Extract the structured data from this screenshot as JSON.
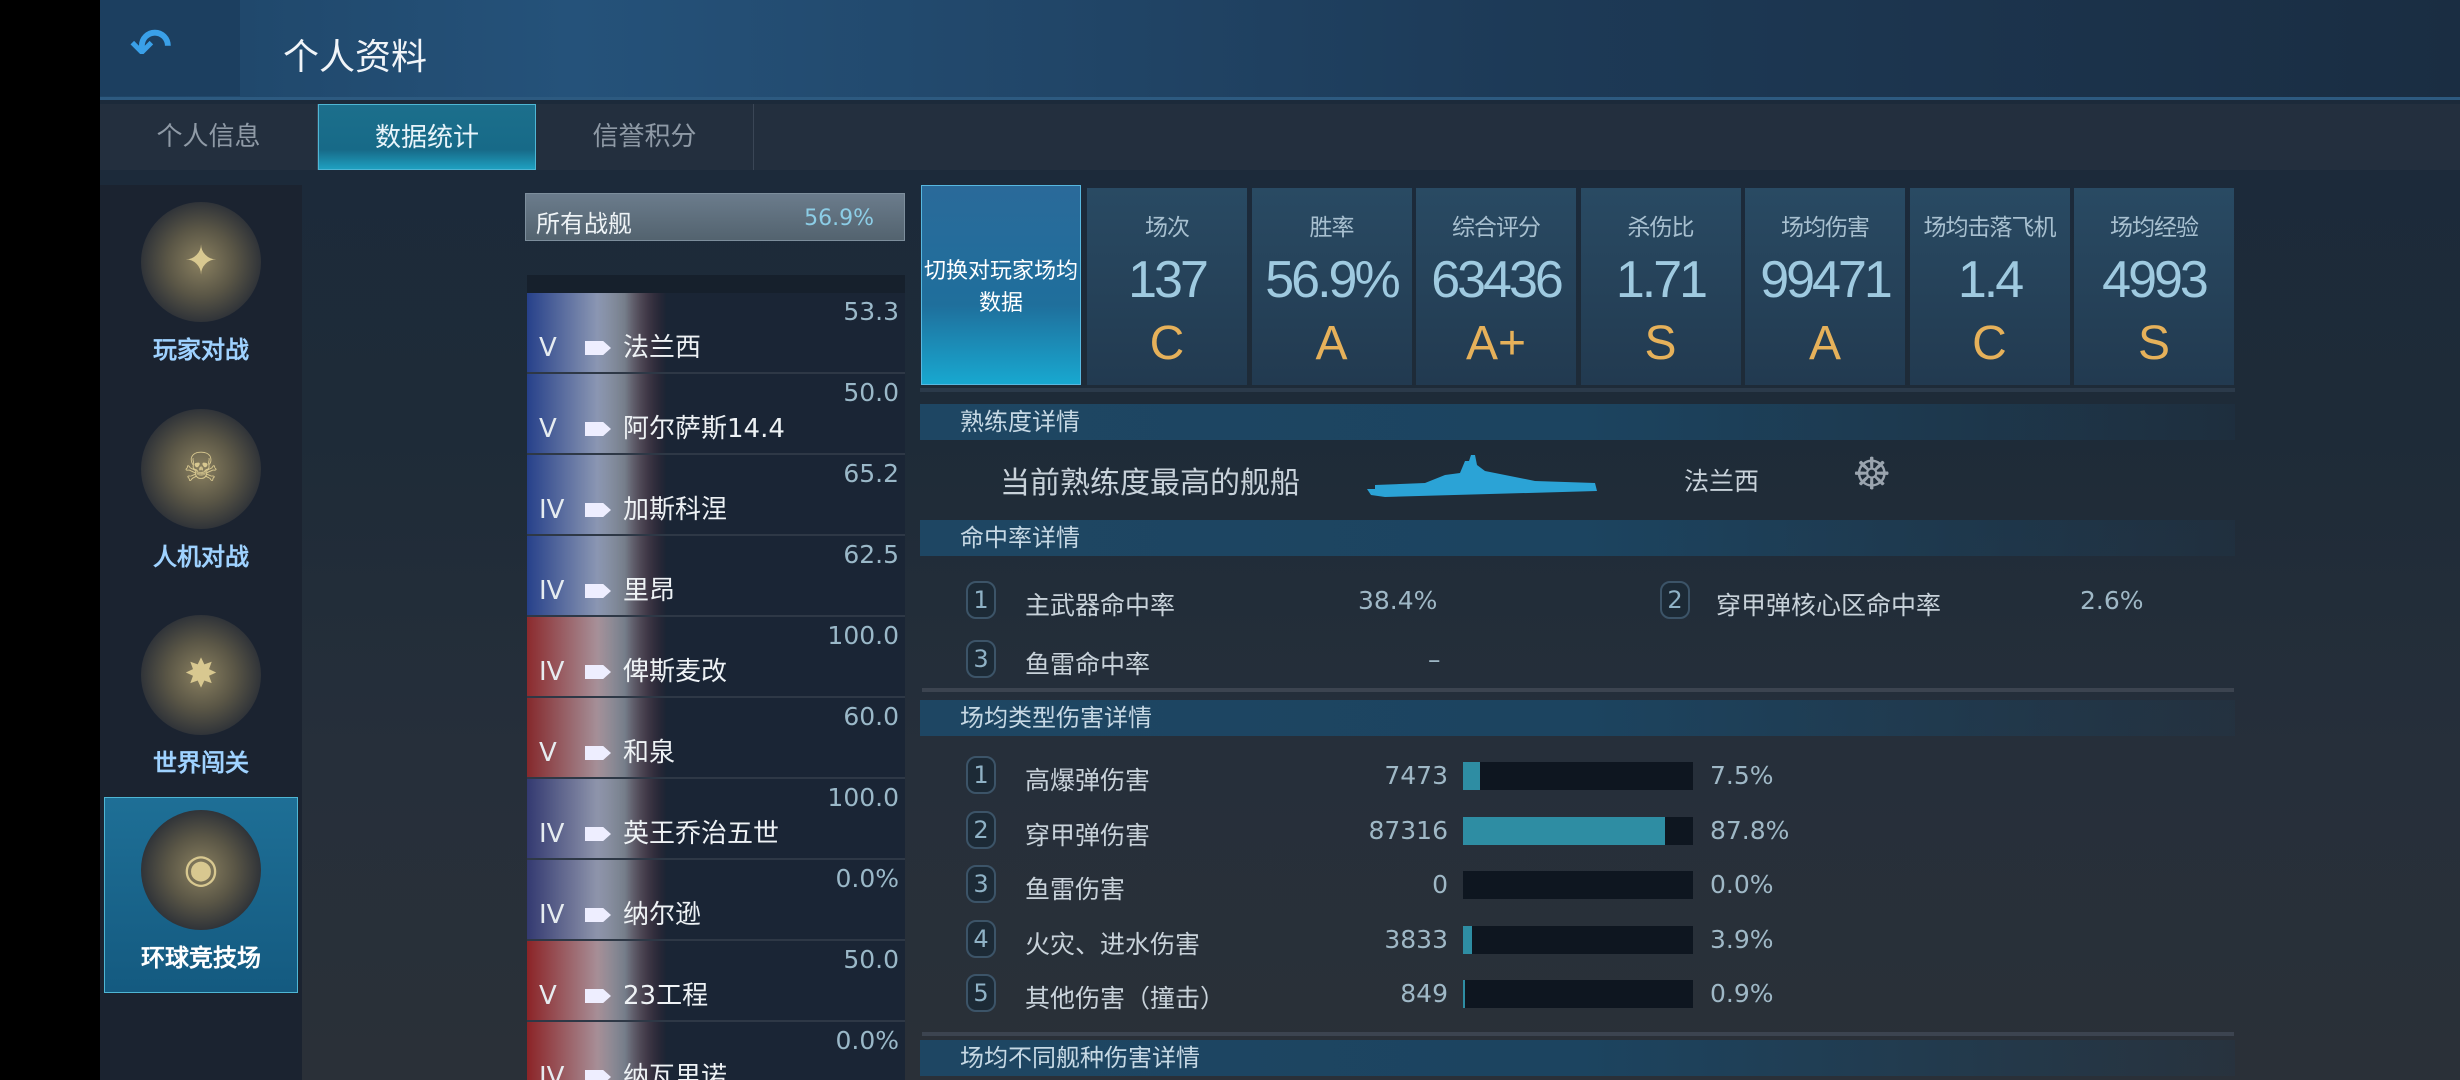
{
  "header": {
    "title": "个人资料",
    "back_icon": "back-arrow-icon"
  },
  "tabs": [
    {
      "label": "个人信息"
    },
    {
      "label": "数据统计",
      "active": true
    },
    {
      "label": "信誉积分"
    }
  ],
  "modes": [
    {
      "label": "玩家对战"
    },
    {
      "label": "人机对战"
    },
    {
      "label": "世界闯关"
    },
    {
      "label": "环球竞技场",
      "active": true
    }
  ],
  "ship_list": {
    "all": {
      "name": "所有战舰",
      "win_rate": "56.9%"
    },
    "rows": [
      {
        "tier": "V",
        "name": "法兰西",
        "win_rate": "53.3",
        "flag": "#2a48a0"
      },
      {
        "tier": "V",
        "name": "阿尔萨斯14.4",
        "win_rate": "50.0",
        "flag": "#2a48a0"
      },
      {
        "tier": "IV",
        "name": "加斯科涅",
        "win_rate": "65.2",
        "flag": "#2a48a0"
      },
      {
        "tier": "IV",
        "name": "里昂",
        "win_rate": "62.5",
        "flag": "#2a48a0"
      },
      {
        "tier": "IV",
        "name": "俾斯麦改",
        "win_rate": "100.0",
        "flag": "#a82c2c"
      },
      {
        "tier": "V",
        "name": "和泉",
        "win_rate": "60.0",
        "flag": "#a02a2a"
      },
      {
        "tier": "IV",
        "name": "英王乔治五世",
        "win_rate": "100.0",
        "flag": "#3a3f80"
      },
      {
        "tier": "IV",
        "name": "纳尔逊",
        "win_rate": "0.0%",
        "flag": "#3a3f80"
      },
      {
        "tier": "V",
        "name": "23工程",
        "win_rate": "50.0",
        "flag": "#a82424"
      },
      {
        "tier": "IV",
        "name": "纳瓦里诺",
        "win_rate": "0.0%",
        "flag": "#a82424"
      }
    ]
  },
  "stats": {
    "switch_label": "切换对玩家场均数据",
    "cards": [
      {
        "label": "场次",
        "value": "137",
        "grade": "C"
      },
      {
        "label": "胜率",
        "value": "56.9%",
        "grade": "A"
      },
      {
        "label": "综合评分",
        "value": "63436",
        "grade": "A+"
      },
      {
        "label": "杀伤比",
        "value": "1.71",
        "grade": "S"
      },
      {
        "label": "场均伤害",
        "value": "99471",
        "grade": "A"
      },
      {
        "label": "场均击落飞机",
        "value": "1.4",
        "grade": "C"
      },
      {
        "label": "场均经验",
        "value": "4993",
        "grade": "S"
      }
    ]
  },
  "proficiency": {
    "title": "熟练度详情",
    "label": "当前熟练度最高的舰船",
    "ship": "法兰西"
  },
  "hit_rate": {
    "title": "命中率详情",
    "items": [
      {
        "n": "1",
        "label": "主武器命中率",
        "value": "38.4%"
      },
      {
        "n": "2",
        "label": "穿甲弹核心区命中率",
        "value": "2.6%"
      },
      {
        "n": "3",
        "label": "鱼雷命中率",
        "value": "–"
      }
    ]
  },
  "damage_types": {
    "title": "场均类型伤害详情",
    "items": [
      {
        "n": "1",
        "label": "高爆弹伤害",
        "value": "7473",
        "pct": "7.5%",
        "fraction": 0.075
      },
      {
        "n": "2",
        "label": "穿甲弹伤害",
        "value": "87316",
        "pct": "87.8%",
        "fraction": 0.878
      },
      {
        "n": "3",
        "label": "鱼雷伤害",
        "value": "0",
        "pct": "0.0%",
        "fraction": 0.0
      },
      {
        "n": "4",
        "label": "火灾、进水伤害",
        "value": "3833",
        "pct": "3.9%",
        "fraction": 0.039
      },
      {
        "n": "5",
        "label": "其他伤害（撞击）",
        "value": "849",
        "pct": "0.9%",
        "fraction": 0.009
      }
    ]
  },
  "ship_type_damage": {
    "title": "场均不同舰种伤害详情"
  },
  "colors": {
    "accent": "#2e8da3",
    "grade": "#e6b15a",
    "active_tab": "#1c6f8c"
  }
}
